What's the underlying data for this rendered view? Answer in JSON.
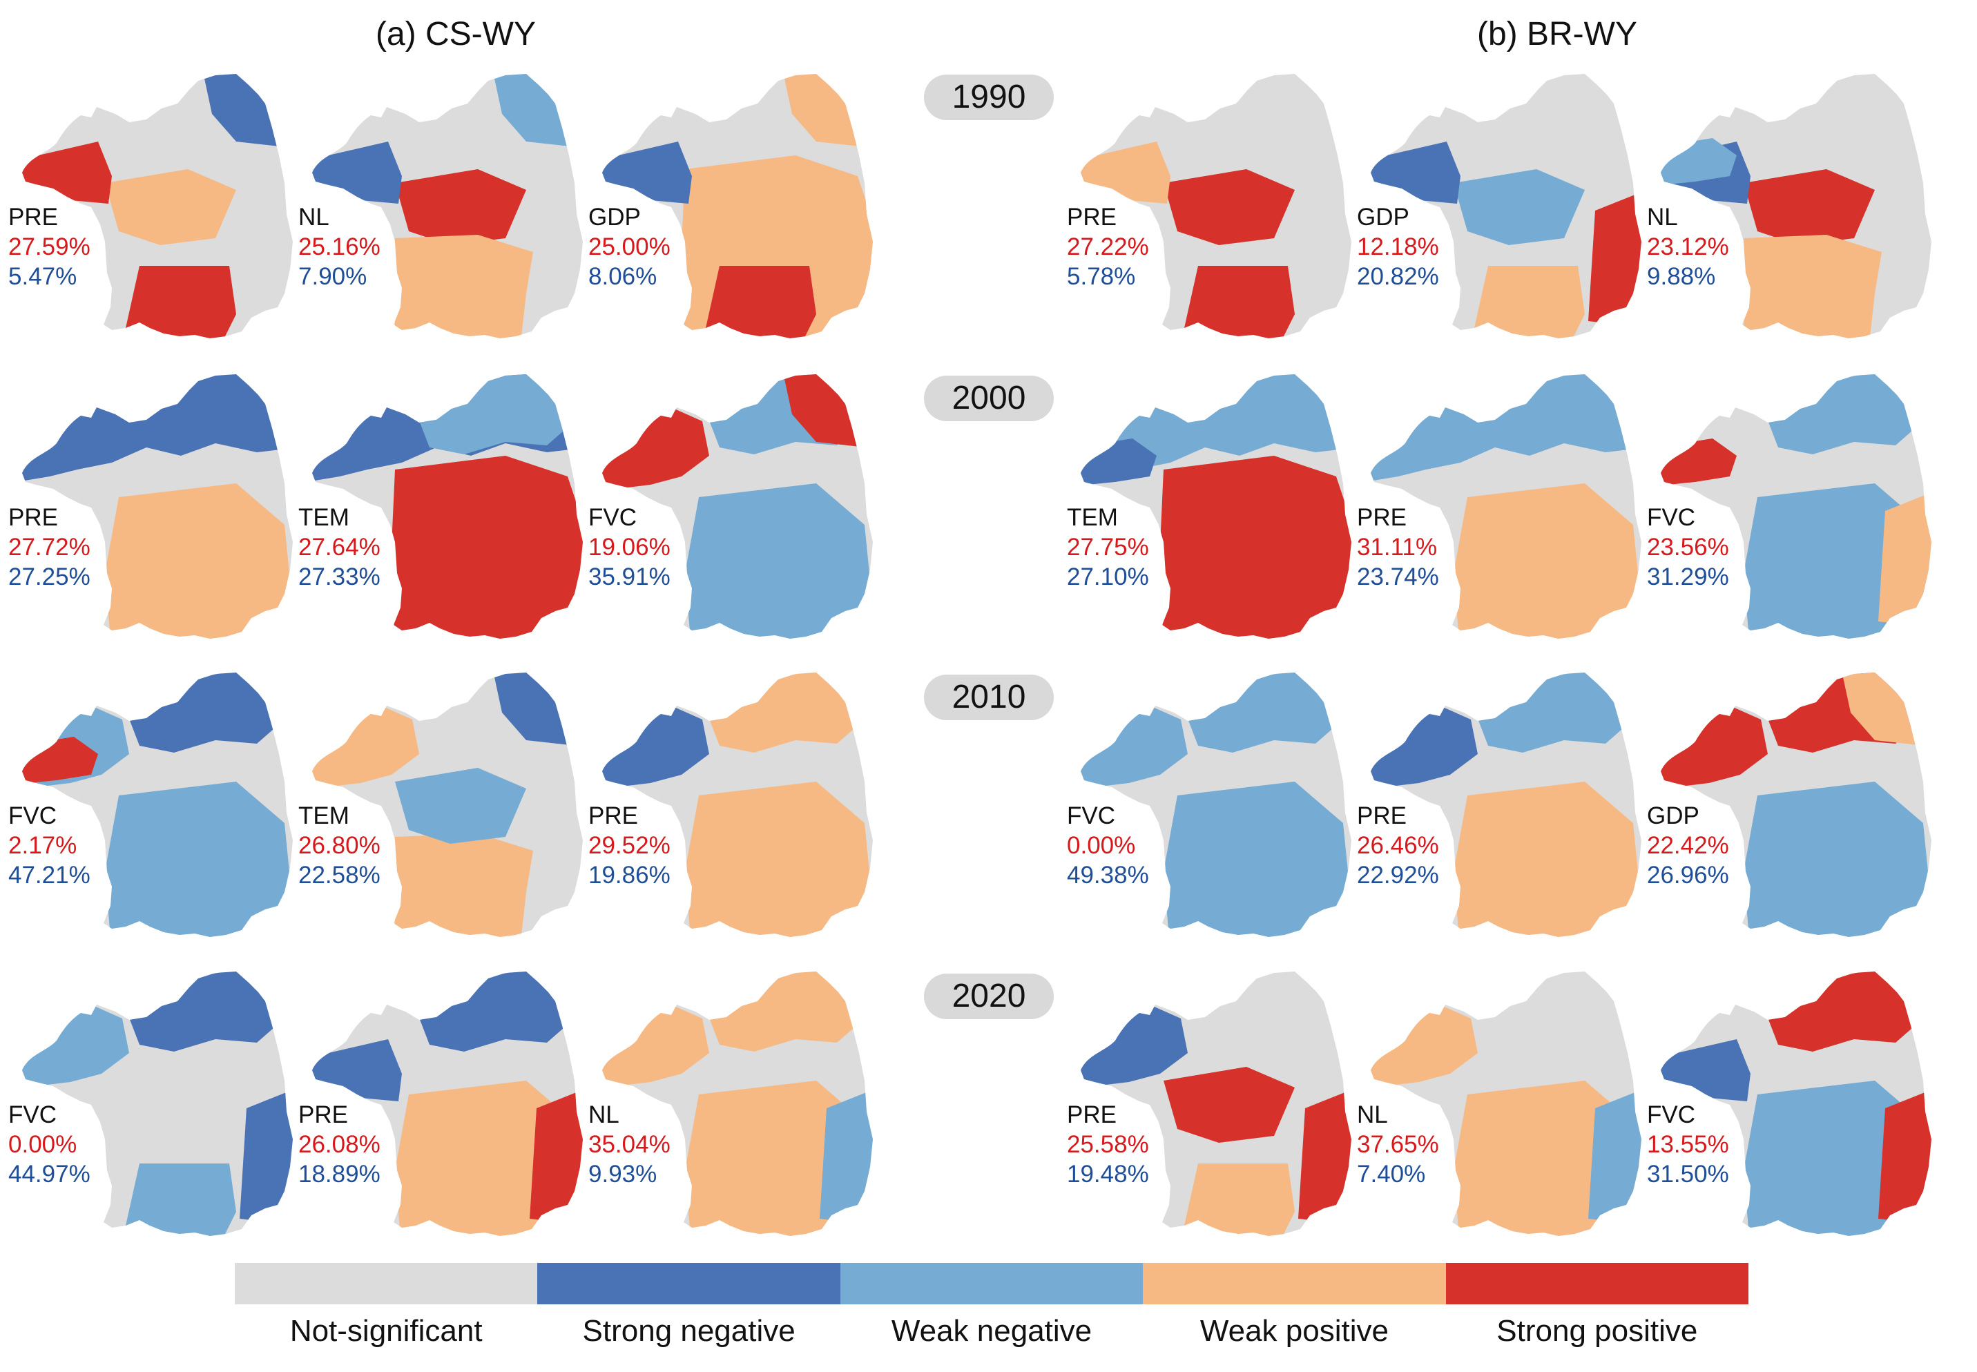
{
  "titles": {
    "a": "(a) CS-WY",
    "b": "(b) BR-WY"
  },
  "years": [
    "1990",
    "2000",
    "2010",
    "2020"
  ],
  "colors": {
    "not_significant": "#dcdcdc",
    "strong_negative": "#4a73b5",
    "weak_negative": "#76acd4",
    "weak_positive": "#f6b983",
    "strong_positive": "#d7312b"
  },
  "legend": [
    {
      "label": "Not-significant",
      "color_key": "not_significant"
    },
    {
      "label": "Strong negative",
      "color_key": "strong_negative"
    },
    {
      "label": "Weak negative",
      "color_key": "weak_negative"
    },
    {
      "label": "Weak positive",
      "color_key": "weak_positive"
    },
    {
      "label": "Strong positive",
      "color_key": "strong_positive"
    }
  ],
  "panels": {
    "a": [
      [
        {
          "var": "PRE",
          "pos": "27.59%",
          "neg": "5.47%"
        },
        {
          "var": "NL",
          "pos": "25.16%",
          "neg": "7.90%"
        },
        {
          "var": "GDP",
          "pos": "25.00%",
          "neg": "8.06%"
        }
      ],
      [
        {
          "var": "PRE",
          "pos": "27.72%",
          "neg": "27.25%"
        },
        {
          "var": "TEM",
          "pos": "27.64%",
          "neg": "27.33%"
        },
        {
          "var": "FVC",
          "pos": "19.06%",
          "neg": "35.91%"
        }
      ],
      [
        {
          "var": "FVC",
          "pos": "2.17%",
          "neg": "47.21%"
        },
        {
          "var": "TEM",
          "pos": "26.80%",
          "neg": "22.58%"
        },
        {
          "var": "PRE",
          "pos": "29.52%",
          "neg": "19.86%"
        }
      ],
      [
        {
          "var": "FVC",
          "pos": "0.00%",
          "neg": "44.97%"
        },
        {
          "var": "PRE",
          "pos": "26.08%",
          "neg": "18.89%"
        },
        {
          "var": "NL",
          "pos": "35.04%",
          "neg": "9.93%"
        }
      ]
    ],
    "b": [
      [
        {
          "var": "PRE",
          "pos": "27.22%",
          "neg": "5.78%"
        },
        {
          "var": "GDP",
          "pos": "12.18%",
          "neg": "20.82%"
        },
        {
          "var": "NL",
          "pos": "23.12%",
          "neg": "9.88%"
        }
      ],
      [
        {
          "var": "TEM",
          "pos": "27.75%",
          "neg": "27.10%"
        },
        {
          "var": "PRE",
          "pos": "31.11%",
          "neg": "23.74%"
        },
        {
          "var": "FVC",
          "pos": "23.56%",
          "neg": "31.29%"
        }
      ],
      [
        {
          "var": "FVC",
          "pos": "0.00%",
          "neg": "49.38%"
        },
        {
          "var": "PRE",
          "pos": "26.46%",
          "neg": "22.92%"
        },
        {
          "var": "GDP",
          "pos": "22.42%",
          "neg": "26.96%"
        }
      ],
      [
        {
          "var": "PRE",
          "pos": "25.58%",
          "neg": "19.48%"
        },
        {
          "var": "NL",
          "pos": "37.65%",
          "neg": "7.40%"
        },
        {
          "var": "FVC",
          "pos": "13.55%",
          "neg": "31.50%"
        }
      ]
    ]
  }
}
